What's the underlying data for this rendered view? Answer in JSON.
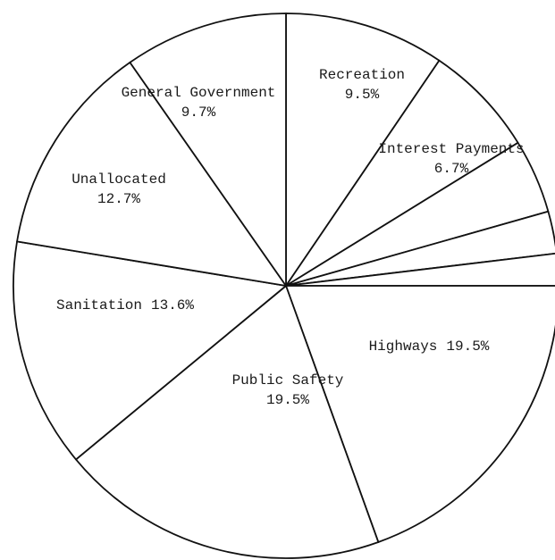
{
  "chart_data": {
    "type": "pie",
    "categories": [
      "Recreation",
      "Interest Payments",
      null,
      null,
      null,
      "Highways",
      "Public Safety",
      "Sanitation",
      "Unallocated",
      "General Government"
    ],
    "values": [
      9.5,
      6.7,
      4.4,
      2.5,
      1.9,
      19.5,
      19.5,
      13.6,
      12.7,
      9.7
    ],
    "value_labels": [
      "9.5%",
      "6.7%",
      null,
      null,
      null,
      "19.5%",
      "19.5%",
      "13.6%",
      "12.7%",
      "9.7%"
    ],
    "color": "#ffffff",
    "line_color": "#111111"
  }
}
